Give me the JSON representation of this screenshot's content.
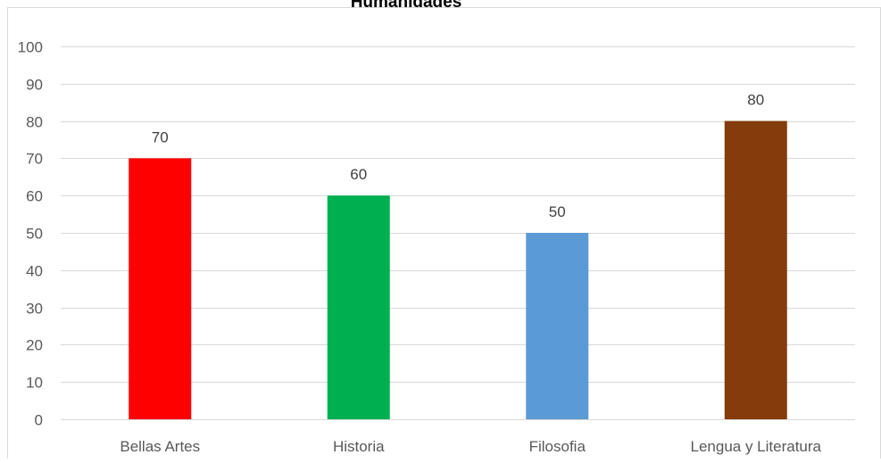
{
  "chart_data": {
    "type": "bar",
    "title": "Humanidades",
    "categories": [
      "Bellas Artes",
      "Historia",
      "Filosofia",
      "Lengua y Literatura"
    ],
    "values": [
      70,
      60,
      50,
      80
    ],
    "colors": [
      "#FF0000",
      "#00B050",
      "#5B9BD5",
      "#843C0C"
    ],
    "data_labels": [
      "70",
      "60",
      "50",
      "80"
    ],
    "ylim": [
      0,
      100
    ],
    "yticks": [
      0,
      10,
      20,
      30,
      40,
      50,
      60,
      70,
      80,
      90,
      100
    ],
    "ytick_labels": [
      "0",
      "10",
      "20",
      "30",
      "40",
      "50",
      "60",
      "70",
      "80",
      "90",
      "100"
    ],
    "xlabel": "",
    "ylabel": "",
    "grid": true,
    "legend": "none"
  }
}
